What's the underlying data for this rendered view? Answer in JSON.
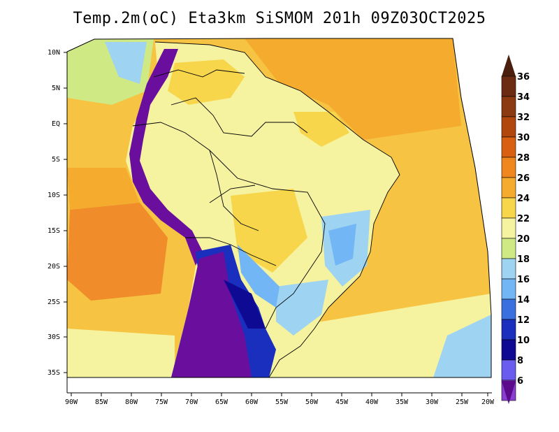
{
  "title": "Temp.2m(oC) Eta3km SiSMOM 201h 09Z03OCT2025",
  "map": {
    "lat_labels": [
      "10N",
      "5N",
      "EQ",
      "5S",
      "10S",
      "15S",
      "20S",
      "25S",
      "30S",
      "35S"
    ],
    "lon_labels": [
      "90W",
      "85W",
      "80W",
      "75W",
      "70W",
      "65W",
      "60W",
      "55W",
      "50W",
      "45W",
      "40W",
      "35W",
      "30W",
      "25W",
      "20W"
    ]
  },
  "colorbar": {
    "labels": [
      "36",
      "34",
      "32",
      "30",
      "28",
      "26",
      "24",
      "22",
      "20",
      "18",
      "16",
      "14",
      "12",
      "10",
      "8",
      "6"
    ],
    "colors": [
      "#6b2a12",
      "#8b3a12",
      "#b2470e",
      "#d95f12",
      "#f0861e",
      "#f5ab2e",
      "#f7d64c",
      "#f6f3a0",
      "#cfe985",
      "#9fd3f2",
      "#73b6f5",
      "#3a6fe0",
      "#1a2fbd",
      "#0e0a94",
      "#6b5cf0",
      "#8a3fd0",
      "#6a0e9e"
    ],
    "arrow_top": "#4a1f0e",
    "arrow_bottom": "#5a0a8a"
  }
}
